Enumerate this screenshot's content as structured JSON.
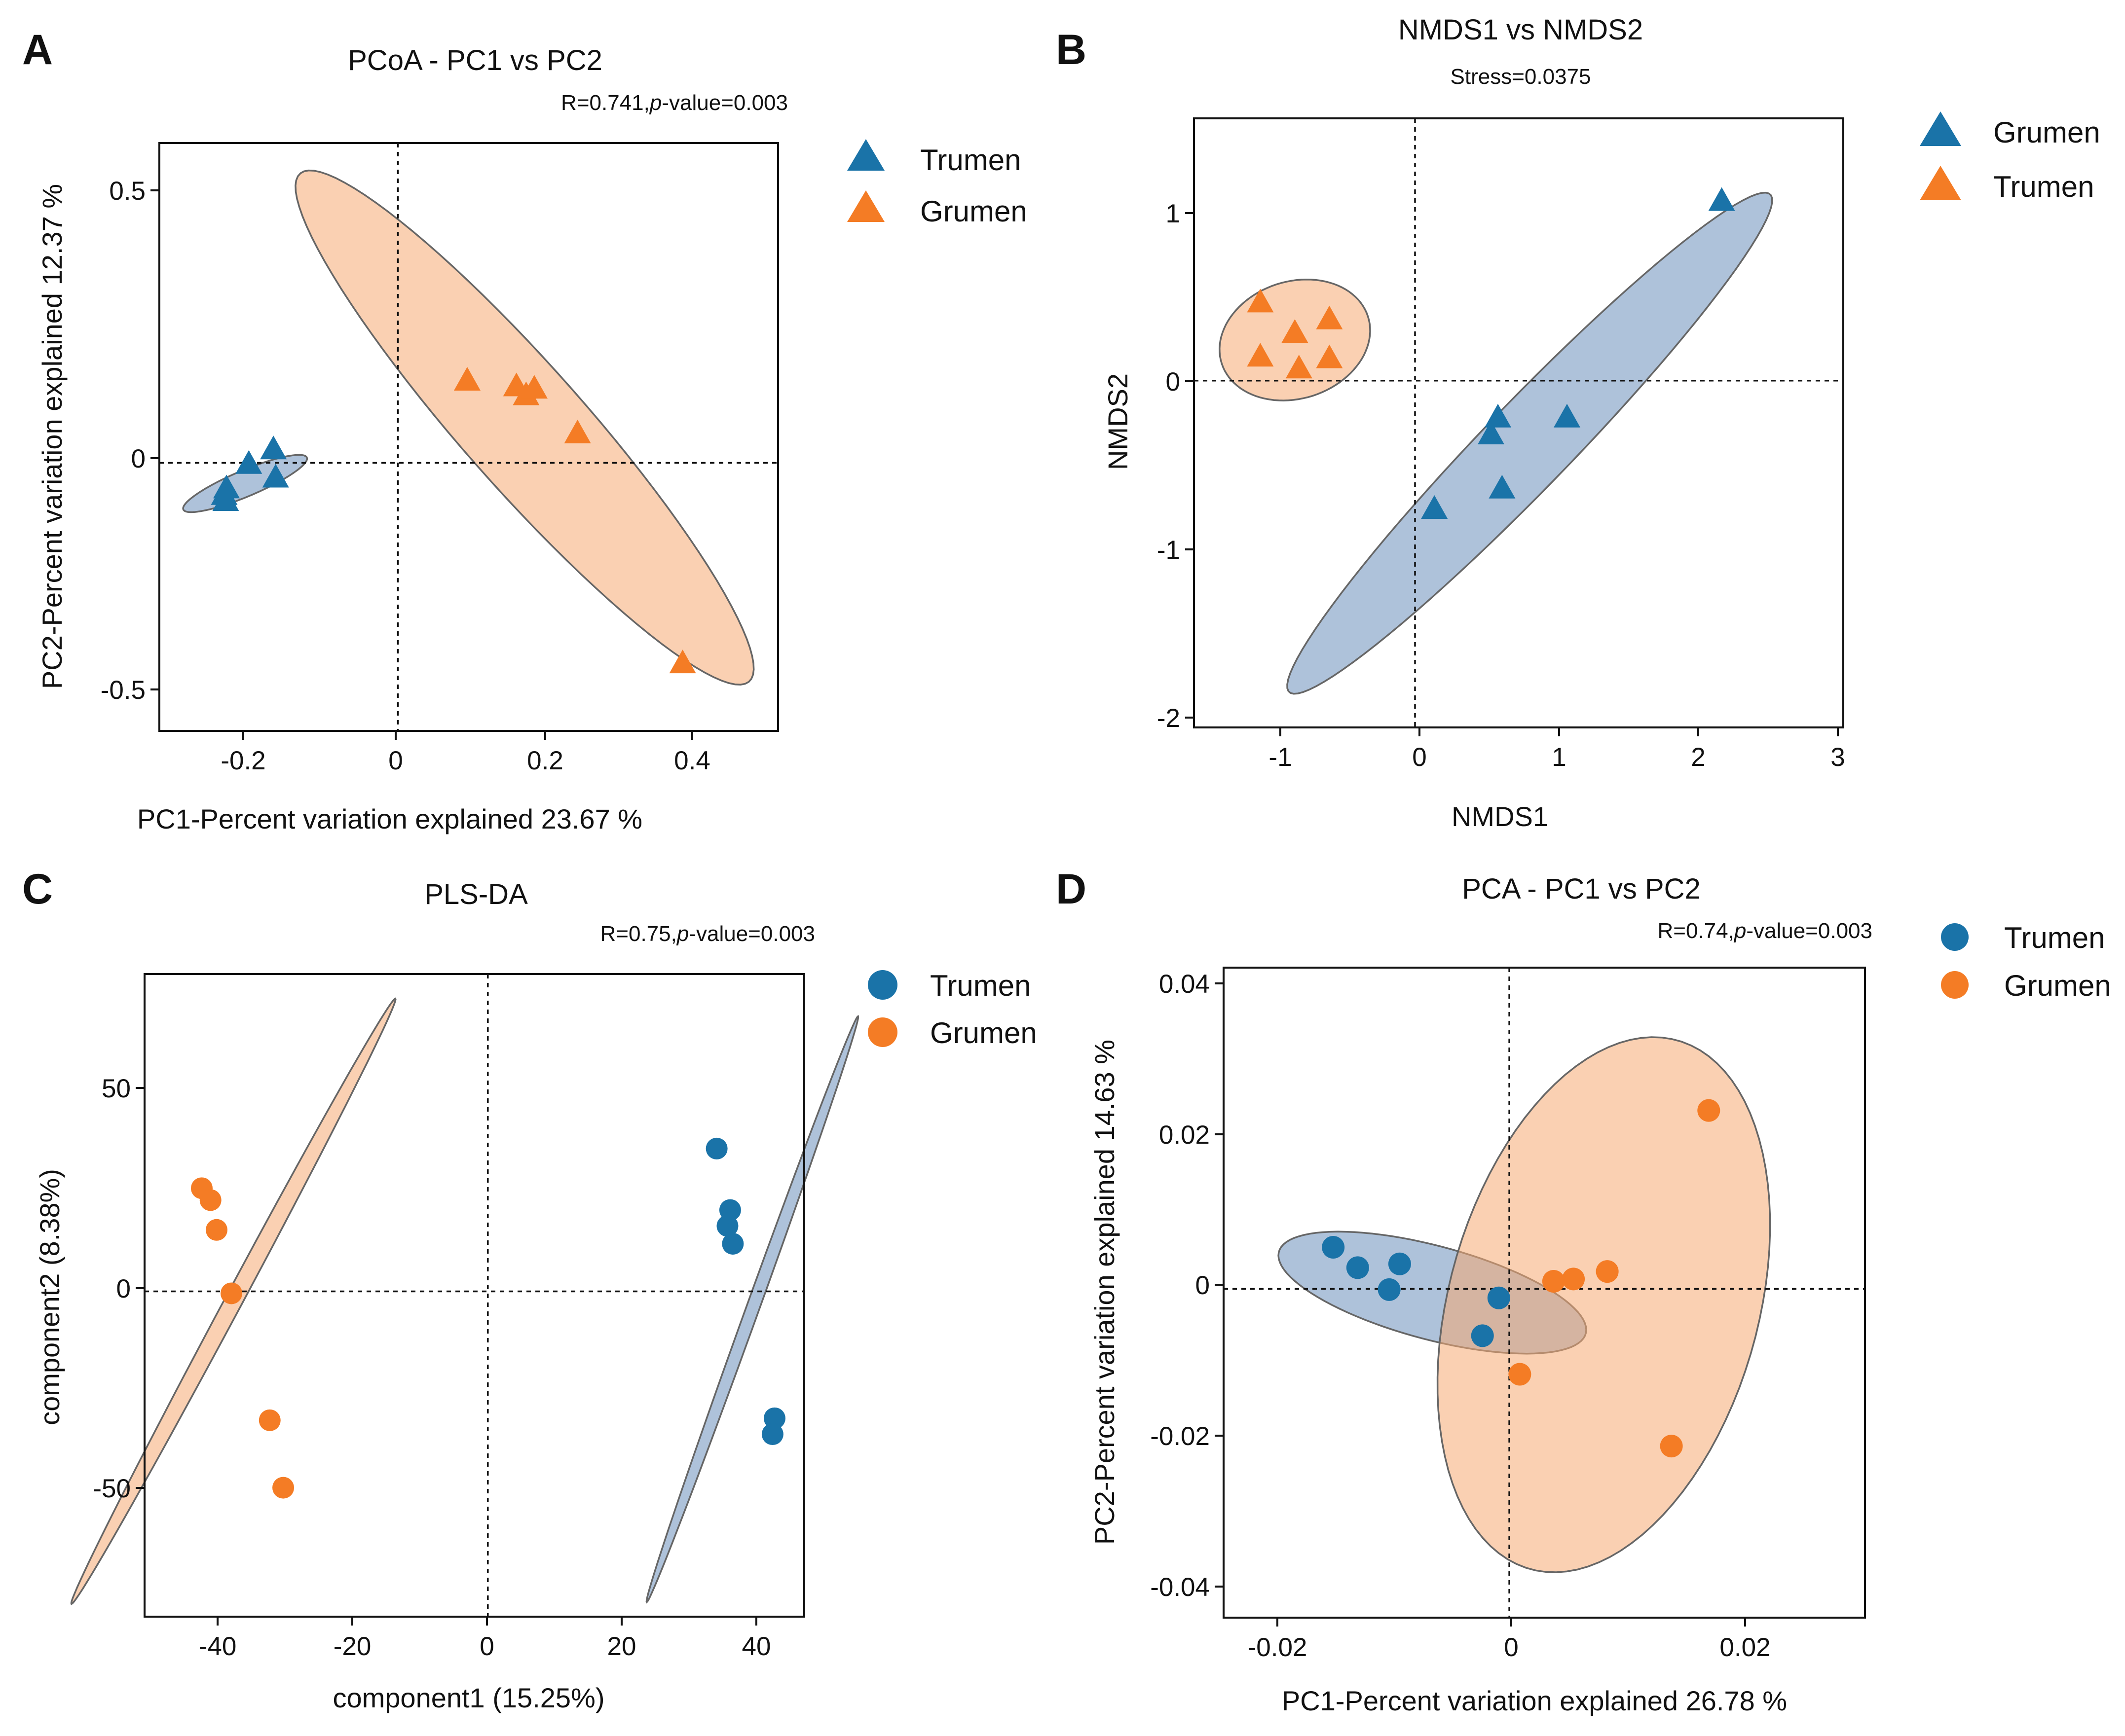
{
  "colors": {
    "blue": "#1a73a8",
    "orange": "#f47c25",
    "blue_fill": "#6b8fbb",
    "orange_fill": "#f6aa72"
  },
  "panels": [
    {
      "label": "A",
      "title": "PCoA - PC1 vs PC2",
      "stat_prefix": "R=0.741,",
      "stat_p": "p",
      "stat_suffix": "-value=0.003",
      "xlabel": "PC1-Percent variation explained 23.67 %",
      "ylabel": "PC2-Percent variation explained 12.37 %",
      "x_ticks": [
        "-0.2",
        "0",
        "0.2",
        "0.4"
      ],
      "y_ticks": [
        "-0.5",
        "0",
        "0.5"
      ],
      "legend": [
        "Trumen",
        "Grumen"
      ]
    },
    {
      "label": "B",
      "title": "NMDS1 vs NMDS2",
      "subtitle": "Stress=0.0375",
      "xlabel": "NMDS1",
      "ylabel": "NMDS2",
      "x_ticks": [
        "-1",
        "0",
        "1",
        "2",
        "3"
      ],
      "y_ticks": [
        "-2",
        "-1",
        "0",
        "1"
      ],
      "legend": [
        "Grumen",
        "Trumen"
      ]
    },
    {
      "label": "C",
      "title": "PLS-DA",
      "stat_prefix": "R=0.75,",
      "stat_p": "p",
      "stat_suffix": "-value=0.003",
      "xlabel": "component1 (15.25%)",
      "ylabel": "component2 (8.38%)",
      "x_ticks": [
        "-40",
        "-20",
        "0",
        "20",
        "40"
      ],
      "y_ticks": [
        "-50",
        "0",
        "50"
      ],
      "legend": [
        "Trumen",
        "Grumen"
      ]
    },
    {
      "label": "D",
      "title": "PCA - PC1 vs PC2",
      "stat_prefix": "R=0.74,",
      "stat_p": "p",
      "stat_suffix": "-value=0.003",
      "xlabel": "PC1-Percent variation explained 26.78 %",
      "ylabel": "PC2-Percent variation explained 14.63 %",
      "x_ticks": [
        "-0.02",
        "0",
        "0.02"
      ],
      "y_ticks": [
        "-0.04",
        "-0.02",
        "0",
        "0.02",
        "0.04"
      ],
      "legend": [
        "Trumen",
        "Grumen"
      ]
    }
  ],
  "chart_data": [
    {
      "type": "scatter",
      "id": "A",
      "title": "PCoA - PC1 vs PC2",
      "xlim": [
        -0.32,
        0.51
      ],
      "ylim": [
        -0.57,
        0.68
      ],
      "xlabel": "PC1-Percent variation explained 23.67 %",
      "ylabel": "PC2-Percent variation explained 12.37 %",
      "marker": "triangle",
      "legend_position": "top-right-outside",
      "series": [
        {
          "name": "Trumen",
          "color": "blue",
          "x": [
            -0.167,
            -0.2,
            -0.164,
            -0.23,
            -0.233,
            -0.231
          ],
          "y": [
            0.028,
            -0.003,
            -0.032,
            -0.055,
            -0.069,
            -0.082
          ],
          "ellipse": {
            "center": [
              -0.205,
              -0.044
            ],
            "semi_major": 0.1,
            "semi_minor": 0.025,
            "angle_deg": 35
          }
        },
        {
          "name": "Grumen",
          "color": "orange",
          "x": [
            0.093,
            0.159,
            0.172,
            0.183,
            0.241,
            0.382
          ],
          "y": [
            0.174,
            0.162,
            0.143,
            0.157,
            0.062,
            -0.427
          ],
          "ellipse": {
            "center": [
              0.17,
              0.075
            ],
            "semi_major": 0.62,
            "semi_minor": 0.095,
            "angle_deg": -61.5
          }
        }
      ]
    },
    {
      "type": "scatter",
      "id": "B",
      "title": "NMDS1 vs NMDS2",
      "subtitle": "Stress=0.0375",
      "xlim": [
        -1.6,
        3.1
      ],
      "ylim": [
        -2.05,
        1.55
      ],
      "xlabel": "NMDS1",
      "ylabel": "NMDS2",
      "marker": "triangle",
      "legend_position": "top-right-outside",
      "series": [
        {
          "name": "Grumen",
          "color": "blue",
          "x": [
            2.22,
            0.6,
            1.1,
            0.55,
            0.63,
            0.14
          ],
          "y": [
            1.06,
            -0.22,
            -0.22,
            -0.32,
            -0.64,
            -0.76
          ],
          "ellipse": {
            "center": [
              0.83,
              -0.37
            ],
            "semi_major": 2.28,
            "semi_minor": 0.28,
            "angle_deg": 40
          }
        },
        {
          "name": "Trumen",
          "color": "orange",
          "x": [
            -1.12,
            -0.87,
            -0.62,
            -1.12,
            -0.84,
            -0.62
          ],
          "y": [
            0.46,
            0.28,
            0.36,
            0.14,
            0.07,
            0.13
          ],
          "ellipse": {
            "center": [
              -0.87,
              0.24
            ],
            "semi_major": 0.55,
            "semi_minor": 0.35,
            "angle_deg": 10
          }
        }
      ]
    },
    {
      "type": "scatter",
      "id": "C",
      "title": "PLS-DA",
      "xlim": [
        -51,
        47
      ],
      "ylim": [
        -82,
        80
      ],
      "xlabel": "component1 (15.25%)",
      "ylabel": "component2 (8.38%)",
      "marker": "circle",
      "legend_position": "top-right-outside",
      "series": [
        {
          "name": "Trumen",
          "color": "blue",
          "x": [
            34,
            36,
            35.6,
            36.4,
            42.6,
            42.3
          ],
          "y": [
            36,
            20.5,
            16.5,
            12,
            -32,
            -36
          ],
          "ellipse": {
            "center": [
              39.3,
              -4.5
            ],
            "semi_major": 75.5,
            "semi_minor": 1.0,
            "angle_deg": 78
          }
        },
        {
          "name": "Grumen",
          "color": "orange",
          "x": [
            -42.5,
            -41.2,
            -40.3,
            -38.1,
            -32.4,
            -30.4
          ],
          "y": [
            26,
            23,
            15.5,
            -0.5,
            -32.5,
            -49.5
          ],
          "ellipse": {
            "center": [
              -37.8,
              -2.5
            ],
            "semi_major": 80,
            "semi_minor": 1.4,
            "angle_deg": 72.5
          }
        }
      ]
    },
    {
      "type": "scatter",
      "id": "D",
      "title": "PCA - PC1 vs PC2",
      "xlim": [
        -0.0245,
        0.0305
      ],
      "ylim": [
        -0.0435,
        0.0425
      ],
      "xlabel": "PC1-Percent variation explained 26.78 %",
      "ylabel": "PC2-Percent variation explained 14.63 %",
      "marker": "circle",
      "legend_position": "top-right-outside",
      "series": [
        {
          "name": "Trumen",
          "color": "blue",
          "x": [
            -0.0151,
            -0.013,
            -0.0094,
            -0.0103,
            -0.0009,
            -0.0023
          ],
          "y": [
            0.0055,
            0.0028,
            0.0033,
            -0.0001,
            -0.0012,
            -0.0062
          ],
          "ellipse": {
            "center": [
              -0.0066,
              -0.0005
            ],
            "semi_major": 0.0143,
            "semi_minor": 0.0059,
            "angle_deg": -25
          }
        },
        {
          "name": "Grumen",
          "color": "orange",
          "x": [
            0.0171,
            0.0084,
            0.0055,
            0.0038,
            0.0009,
            0.0139
          ],
          "y": [
            0.0236,
            0.0023,
            0.0013,
            0.001,
            -0.0113,
            -0.0208
          ],
          "ellipse": {
            "center": [
              0.0081,
              -0.0021
            ],
            "semi_major": 0.0357,
            "semi_minor": 0.0135,
            "angle_deg": 82
          }
        }
      ]
    }
  ]
}
